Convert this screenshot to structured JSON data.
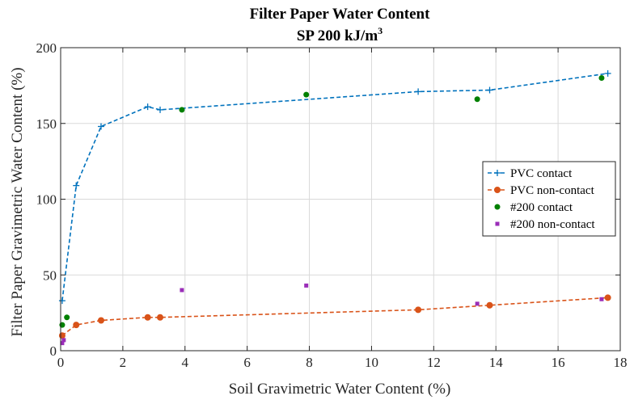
{
  "chart_data": {
    "type": "scatter",
    "title": "Filter Paper Water Content",
    "subtitle": "SP 200 kJ/m",
    "subtitle_sup": "3",
    "xlabel": "Soil Gravimetric Water Content (%)",
    "ylabel": "Filter Paper Gravimetric Water Content (%)",
    "xlim": [
      0,
      18
    ],
    "ylim": [
      0,
      200
    ],
    "xticks": [
      0,
      2,
      4,
      6,
      8,
      10,
      12,
      14,
      16,
      18
    ],
    "yticks": [
      0,
      50,
      100,
      150,
      200
    ],
    "xtick_labels": [
      "0",
      "2",
      "4",
      "6",
      "8",
      "10",
      "12",
      "14",
      "16",
      "18"
    ],
    "ytick_labels": [
      "0",
      "50",
      "100",
      "150",
      "200"
    ],
    "grid": true,
    "legend_position": "right",
    "series": [
      {
        "name": "PVC contact",
        "style": "dashed-line-plus",
        "color": "#0072BD",
        "x": [
          0.05,
          0.5,
          1.3,
          2.8,
          3.2,
          11.5,
          13.8,
          17.6
        ],
        "y": [
          33,
          109,
          148,
          161,
          159,
          171,
          172,
          183
        ]
      },
      {
        "name": "PVC non-contact",
        "style": "dashed-line-circle",
        "color": "#D95319",
        "x": [
          0.05,
          0.5,
          1.3,
          2.8,
          3.2,
          11.5,
          13.8,
          17.6
        ],
        "y": [
          10,
          17,
          20,
          22,
          22,
          27,
          30,
          35
        ]
      },
      {
        "name": "#200 contact",
        "style": "dot",
        "color": "#008000",
        "x": [
          0.05,
          0.2,
          3.9,
          7.9,
          13.4,
          17.4
        ],
        "y": [
          17,
          22,
          159,
          169,
          166,
          180
        ]
      },
      {
        "name": "#200 non-contact",
        "style": "square",
        "color": "#9A2DB8",
        "x": [
          0.05,
          0.1,
          3.9,
          7.9,
          13.4,
          17.4
        ],
        "y": [
          5,
          7,
          40,
          43,
          31,
          34
        ]
      }
    ]
  }
}
